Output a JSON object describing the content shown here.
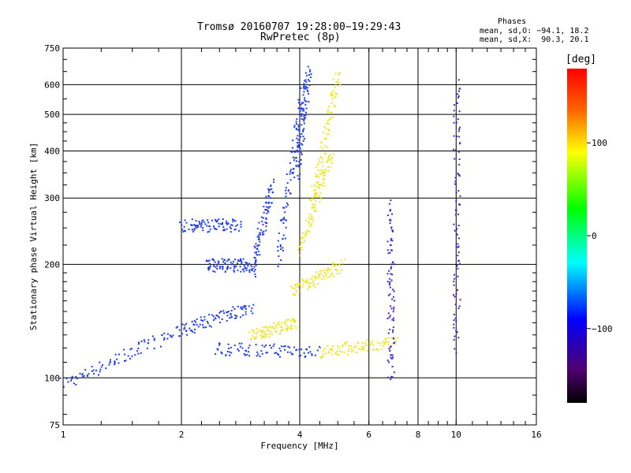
{
  "chart_data": {
    "type": "scatter",
    "title": "Tromsø 20160707 19:28:00−19:29:43",
    "subtitle": "RwPretec (8p)",
    "xlabel": "Frequency [MHz]",
    "ylabel": "Stationary phase Virtual Height [km]",
    "x_scale": "log2",
    "y_scale": "log",
    "xlim": [
      1,
      16
    ],
    "ylim": [
      75,
      750
    ],
    "x_ticks": [
      1,
      2,
      4,
      6,
      8,
      10,
      16
    ],
    "x_tick_labels": [
      "1",
      "2",
      "4",
      "6",
      "8",
      "10",
      "16"
    ],
    "y_ticks": [
      75,
      100,
      200,
      300,
      400,
      500,
      600,
      750
    ],
    "y_tick_labels": [
      "75",
      "100",
      "200",
      "300",
      "400",
      "500",
      "600",
      "750"
    ],
    "grid": true,
    "phases": {
      "title": "Phases",
      "line_o": "mean, sd,O: −94.1, 18.2",
      "line_x": "mean, sd,X:  90.3, 20.1"
    },
    "colorbar": {
      "label": "[deg]",
      "range": [
        -180,
        180
      ],
      "ticks": [
        100,
        0,
        -100
      ],
      "tick_labels": [
        "100",
        "0",
        "−100"
      ]
    },
    "series": [
      {
        "name": "O-mode (blue, about −100 deg)",
        "color": "#1e3cf0",
        "traces": [
          {
            "f_start": 1.0,
            "f_end": 2.0,
            "h_start": 97,
            "h_end": 135
          },
          {
            "f_start": 2.0,
            "f_end": 3.0,
            "h_start": 135,
            "h_end": 155
          },
          {
            "f_start": 2.4,
            "f_end": 4.5,
            "h_start": 120,
            "h_end": 118
          },
          {
            "f_start": 3.0,
            "f_end": 3.4,
            "h_start": 190,
            "h_end": 330
          },
          {
            "f_start": 3.5,
            "f_end": 4.1,
            "h_start": 200,
            "h_end": 620
          },
          {
            "f_start": 3.9,
            "f_end": 4.2,
            "h_start": 350,
            "h_end": 650
          },
          {
            "f_start": 2.0,
            "f_end": 2.8,
            "h_start": 255,
            "h_end": 255
          },
          {
            "f_start": 2.3,
            "f_end": 3.0,
            "h_start": 200,
            "h_end": 200
          }
        ]
      },
      {
        "name": "X-mode (yellow, about +100 deg)",
        "color": "#f0e61e",
        "traces": [
          {
            "f_start": 3.0,
            "f_end": 3.9,
            "h_start": 130,
            "h_end": 140
          },
          {
            "f_start": 3.8,
            "f_end": 5.1,
            "h_start": 170,
            "h_end": 200
          },
          {
            "f_start": 4.0,
            "f_end": 4.8,
            "h_start": 220,
            "h_end": 400
          },
          {
            "f_start": 4.3,
            "f_end": 5.0,
            "h_start": 300,
            "h_end": 650
          },
          {
            "f_start": 4.5,
            "f_end": 7.0,
            "h_start": 118,
            "h_end": 124
          }
        ]
      },
      {
        "name": "Isolated echoes",
        "color": "#3c28c8",
        "traces": [
          {
            "f_start": 6.8,
            "f_end": 6.8,
            "h_start": 100,
            "h_end": 290
          },
          {
            "f_start": 10.0,
            "f_end": 10.0,
            "h_start": 120,
            "h_end": 620
          }
        ]
      }
    ]
  }
}
